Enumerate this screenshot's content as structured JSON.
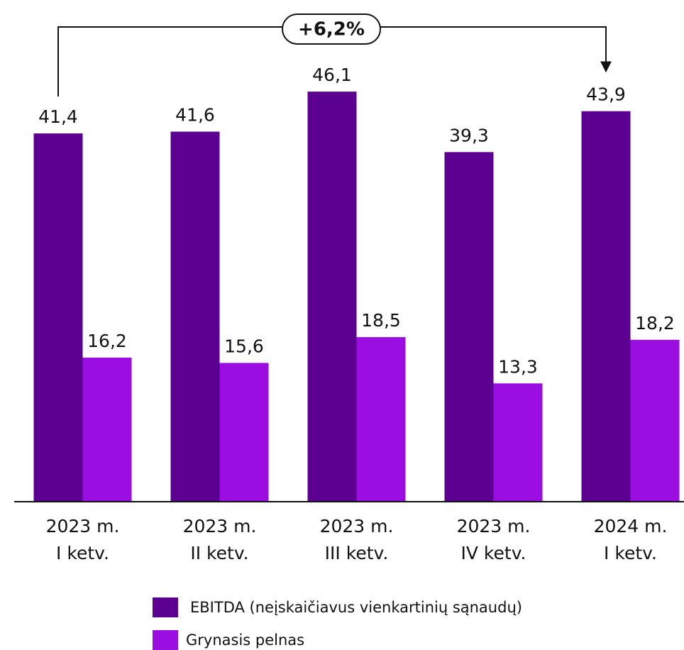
{
  "chart_data": {
    "type": "bar",
    "categories": [
      [
        "2023 m.",
        "I ketv."
      ],
      [
        "2023 m.",
        "II ketv."
      ],
      [
        "2023 m.",
        "III ketv."
      ],
      [
        "2023 m.",
        "IV ketv."
      ],
      [
        "2024 m.",
        "I ketv."
      ]
    ],
    "series": [
      {
        "name": "EBITDA (neįskaičiavus vienkartinių sąnaudų)",
        "color": "#5b0090",
        "values": [
          41.4,
          41.6,
          46.1,
          39.3,
          43.9
        ],
        "value_labels": [
          "41,4",
          "41,6",
          "46,1",
          "39,3",
          "43,9"
        ]
      },
      {
        "name": "Grynasis pelnas",
        "color": "#9a0ee2",
        "values": [
          16.2,
          15.6,
          18.5,
          13.3,
          18.2
        ],
        "value_labels": [
          "16,2",
          "15,6",
          "18,5",
          "13,3",
          "18,2"
        ]
      }
    ],
    "ylim": [
      0,
      56.4
    ],
    "annotation": "+6,2%"
  }
}
